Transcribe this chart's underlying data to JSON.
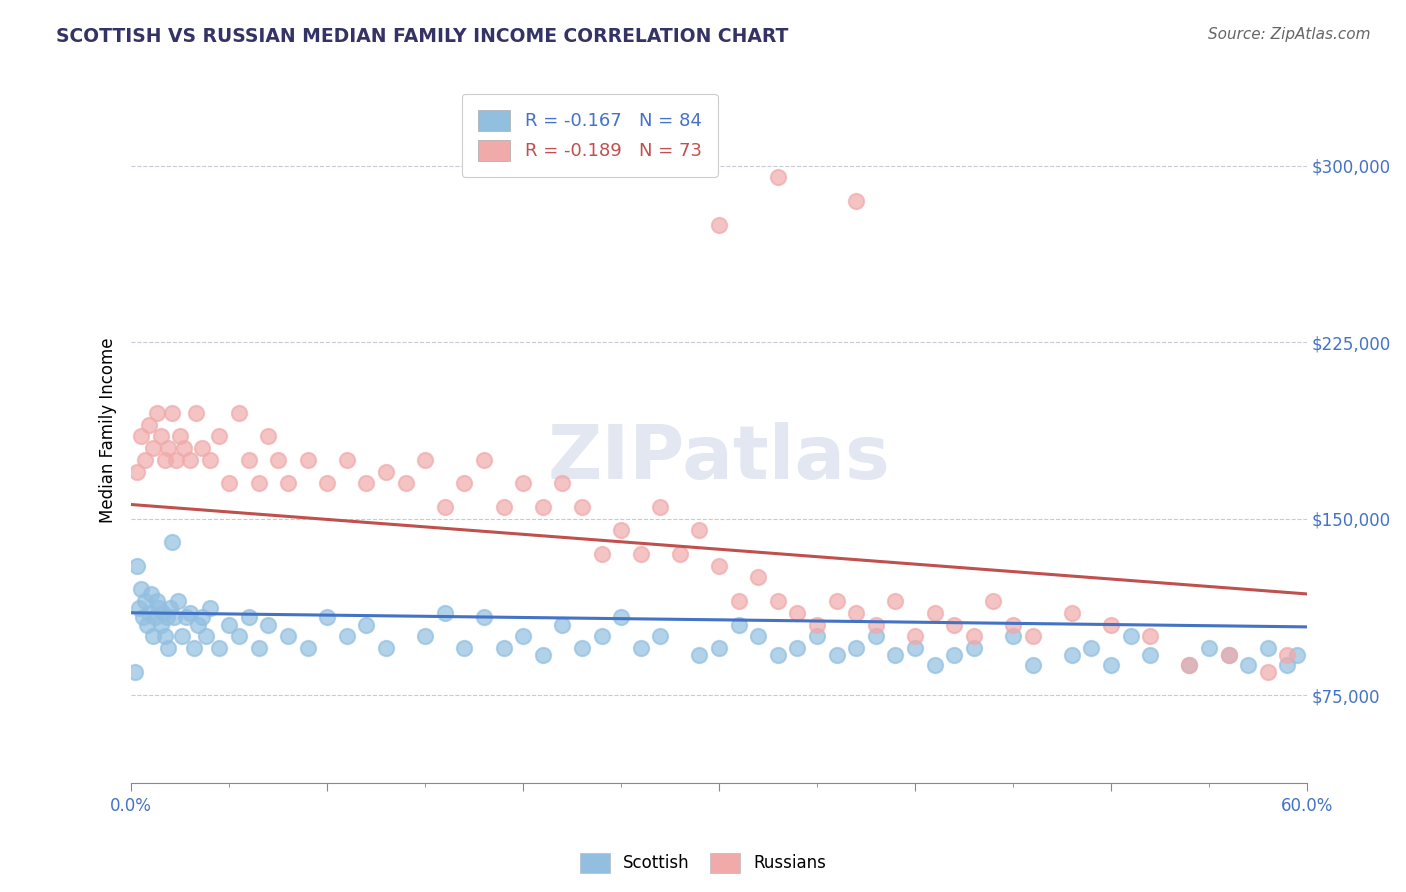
{
  "title": "SCOTTISH VS RUSSIAN MEDIAN FAMILY INCOME CORRELATION CHART",
  "source": "Source: ZipAtlas.com",
  "ylabel": "Median Family Income",
  "y_tick_labels": [
    "$75,000",
    "$150,000",
    "$225,000",
    "$300,000"
  ],
  "y_tick_values": [
    75000,
    150000,
    225000,
    300000
  ],
  "y_min": 37500,
  "y_max": 337500,
  "x_min": 0.0,
  "x_max": 0.6,
  "scottish_color": "#92BFE0",
  "russian_color": "#F0AAAA",
  "scottish_line_color": "#4472C4",
  "russian_line_color": "#C0504D",
  "legend_label_scottish": "R = -0.167   N = 84",
  "legend_label_russian": "R = -0.189   N = 73",
  "watermark": "ZIPatlas",
  "scottish_x": [
    0.002,
    0.004,
    0.005,
    0.006,
    0.007,
    0.008,
    0.009,
    0.01,
    0.011,
    0.012,
    0.013,
    0.014,
    0.015,
    0.016,
    0.017,
    0.018,
    0.019,
    0.02,
    0.022,
    0.024,
    0.026,
    0.028,
    0.03,
    0.032,
    0.034,
    0.036,
    0.038,
    0.04,
    0.045,
    0.05,
    0.055,
    0.06,
    0.065,
    0.07,
    0.08,
    0.09,
    0.1,
    0.11,
    0.12,
    0.13,
    0.15,
    0.16,
    0.17,
    0.18,
    0.19,
    0.2,
    0.21,
    0.22,
    0.23,
    0.24,
    0.25,
    0.26,
    0.27,
    0.29,
    0.3,
    0.31,
    0.32,
    0.33,
    0.34,
    0.35,
    0.36,
    0.37,
    0.38,
    0.39,
    0.4,
    0.41,
    0.42,
    0.43,
    0.45,
    0.46,
    0.48,
    0.49,
    0.5,
    0.51,
    0.52,
    0.54,
    0.55,
    0.56,
    0.57,
    0.58,
    0.59,
    0.595,
    0.003,
    0.021
  ],
  "scottish_y": [
    85000,
    112000,
    120000,
    108000,
    115000,
    105000,
    110000,
    118000,
    100000,
    108000,
    115000,
    112000,
    105000,
    110000,
    100000,
    108000,
    95000,
    112000,
    108000,
    115000,
    100000,
    108000,
    110000,
    95000,
    105000,
    108000,
    100000,
    112000,
    95000,
    105000,
    100000,
    108000,
    95000,
    105000,
    100000,
    95000,
    108000,
    100000,
    105000,
    95000,
    100000,
    110000,
    95000,
    108000,
    95000,
    100000,
    92000,
    105000,
    95000,
    100000,
    108000,
    95000,
    100000,
    92000,
    95000,
    105000,
    100000,
    92000,
    95000,
    100000,
    92000,
    95000,
    100000,
    92000,
    95000,
    88000,
    92000,
    95000,
    100000,
    88000,
    92000,
    95000,
    88000,
    100000,
    92000,
    88000,
    95000,
    92000,
    88000,
    95000,
    88000,
    92000,
    130000,
    140000
  ],
  "russian_x": [
    0.003,
    0.005,
    0.007,
    0.009,
    0.011,
    0.013,
    0.015,
    0.017,
    0.019,
    0.021,
    0.023,
    0.025,
    0.027,
    0.03,
    0.033,
    0.036,
    0.04,
    0.045,
    0.05,
    0.055,
    0.06,
    0.065,
    0.07,
    0.075,
    0.08,
    0.09,
    0.1,
    0.11,
    0.12,
    0.13,
    0.14,
    0.15,
    0.16,
    0.17,
    0.18,
    0.19,
    0.2,
    0.21,
    0.22,
    0.23,
    0.24,
    0.25,
    0.26,
    0.27,
    0.28,
    0.29,
    0.3,
    0.31,
    0.32,
    0.33,
    0.34,
    0.35,
    0.36,
    0.37,
    0.38,
    0.39,
    0.4,
    0.41,
    0.42,
    0.43,
    0.44,
    0.45,
    0.46,
    0.48,
    0.5,
    0.52,
    0.54,
    0.56,
    0.58,
    0.59,
    0.3,
    0.33,
    0.37
  ],
  "russian_y": [
    170000,
    185000,
    175000,
    190000,
    180000,
    195000,
    185000,
    175000,
    180000,
    195000,
    175000,
    185000,
    180000,
    175000,
    195000,
    180000,
    175000,
    185000,
    165000,
    195000,
    175000,
    165000,
    185000,
    175000,
    165000,
    175000,
    165000,
    175000,
    165000,
    170000,
    165000,
    175000,
    155000,
    165000,
    175000,
    155000,
    165000,
    155000,
    165000,
    155000,
    135000,
    145000,
    135000,
    155000,
    135000,
    145000,
    130000,
    115000,
    125000,
    115000,
    110000,
    105000,
    115000,
    110000,
    105000,
    115000,
    100000,
    110000,
    105000,
    100000,
    115000,
    105000,
    100000,
    110000,
    105000,
    100000,
    88000,
    92000,
    85000,
    92000,
    275000,
    295000,
    285000
  ]
}
